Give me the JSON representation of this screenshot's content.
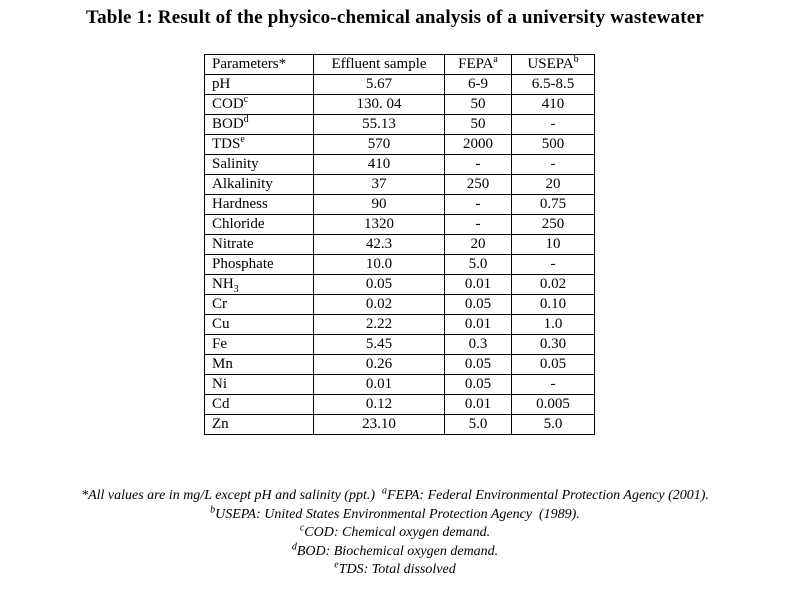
{
  "page": {
    "title": "Table 1: Result of the physico-chemical analysis of a university wastewater"
  },
  "colors": {
    "background": "#ffffff",
    "text": "#000000",
    "table_border": "#000000"
  },
  "table": {
    "headers": [
      {
        "label": "Parameters*",
        "sup": ""
      },
      {
        "label": "Effluent sample",
        "sup": ""
      },
      {
        "label": "FEPA",
        "sup": "a"
      },
      {
        "label": "USEPA",
        "sup": "b"
      }
    ],
    "rows": [
      {
        "param": "pH",
        "param_sup": "",
        "param_sub": "",
        "values": [
          "5.67",
          "6-9",
          "6.5-8.5"
        ]
      },
      {
        "param": "COD",
        "param_sup": "c",
        "param_sub": "",
        "values": [
          "130. 04",
          "50",
          "410"
        ]
      },
      {
        "param": "BOD",
        "param_sup": "d",
        "param_sub": "",
        "values": [
          "55.13",
          "50",
          "-"
        ]
      },
      {
        "param": "TDS",
        "param_sup": "e",
        "param_sub": "",
        "values": [
          "570",
          "2000",
          "500"
        ]
      },
      {
        "param": "Salinity",
        "param_sup": "",
        "param_sub": "",
        "values": [
          "410",
          "-",
          "-"
        ]
      },
      {
        "param": "Alkalinity",
        "param_sup": "",
        "param_sub": "",
        "values": [
          "37",
          "250",
          "20"
        ]
      },
      {
        "param": "Hardness",
        "param_sup": "",
        "param_sub": "",
        "values": [
          "90",
          "-",
          "0.75"
        ]
      },
      {
        "param": "Chloride",
        "param_sup": "",
        "param_sub": "",
        "values": [
          "1320",
          "-",
          "250"
        ]
      },
      {
        "param": "Nitrate",
        "param_sup": "",
        "param_sub": "",
        "values": [
          "42.3",
          "20",
          "10"
        ]
      },
      {
        "param": "Phosphate",
        "param_sup": "",
        "param_sub": "",
        "values": [
          "10.0",
          "5.0",
          "-"
        ]
      },
      {
        "param": "NH",
        "param_sup": "",
        "param_sub": "3",
        "values": [
          "0.05",
          "0.01",
          "0.02"
        ]
      },
      {
        "param": "Cr",
        "param_sup": "",
        "param_sub": "",
        "values": [
          "0.02",
          "0.05",
          "0.10"
        ]
      },
      {
        "param": "Cu",
        "param_sup": "",
        "param_sub": "",
        "values": [
          "2.22",
          "0.01",
          "1.0"
        ]
      },
      {
        "param": "Fe",
        "param_sup": "",
        "param_sub": "",
        "values": [
          "5.45",
          "0.3",
          "0.30"
        ]
      },
      {
        "param": "Mn",
        "param_sup": "",
        "param_sub": "",
        "values": [
          "0.26",
          "0.05",
          "0.05"
        ]
      },
      {
        "param": "Ni",
        "param_sup": "",
        "param_sub": "",
        "values": [
          "0.01",
          "0.05",
          "-"
        ]
      },
      {
        "param": "Cd",
        "param_sup": "",
        "param_sub": "",
        "values": [
          "0.12",
          "0.01",
          "0.005"
        ]
      },
      {
        "param": "Zn",
        "param_sup": "",
        "param_sub": "",
        "values": [
          "23.10",
          "5.0",
          "5.0"
        ]
      }
    ]
  },
  "footnotes": {
    "lines": [
      [
        {
          "sup": "",
          "text": "*All values are in mg/L except pH and salinity (ppt.)  "
        },
        {
          "sup": "a",
          "text": "FEPA: Federal Environmental Protection Agency (2001)."
        }
      ],
      [
        {
          "sup": "b",
          "text": "USEPA: United States Environmental Protection Agency  (1989)."
        }
      ],
      [
        {
          "sup": "c",
          "text": "COD: Chemical oxygen demand."
        }
      ],
      [
        {
          "sup": "d",
          "text": "BOD: Biochemical oxygen demand."
        }
      ],
      [
        {
          "sup": "e",
          "text": "TDS: Total dissolved"
        }
      ]
    ]
  }
}
